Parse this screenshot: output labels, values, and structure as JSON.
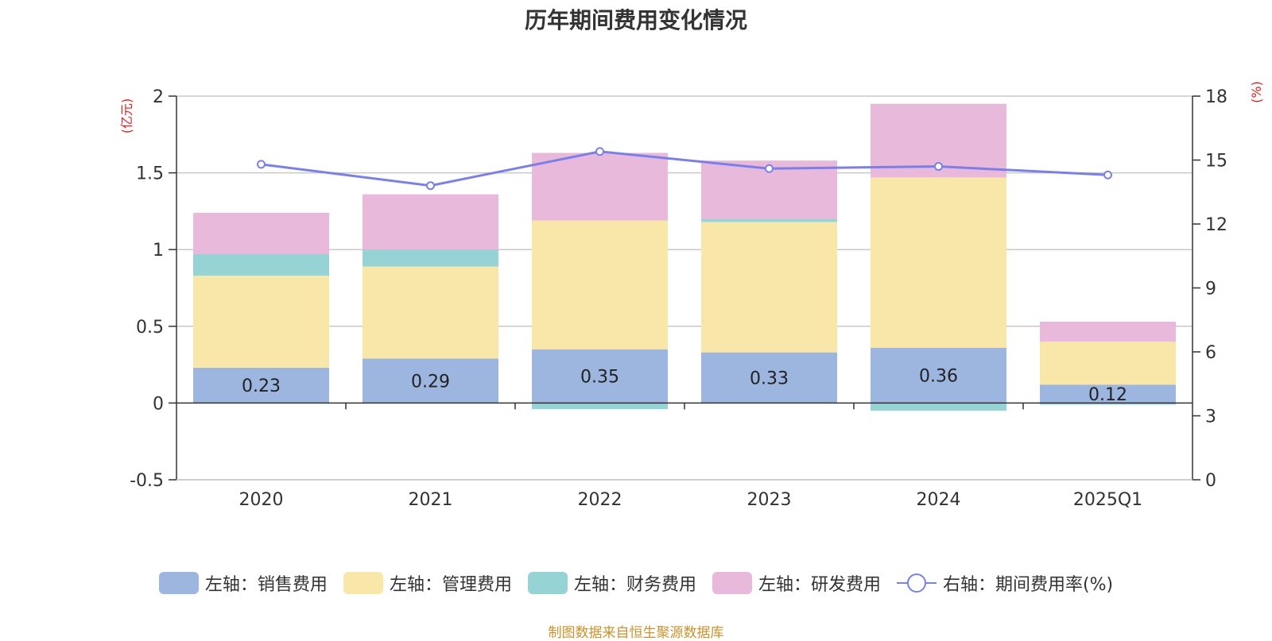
{
  "chart_data": {
    "type": "bar",
    "title": "历年期间费用变化情况",
    "categories": [
      "2020",
      "2021",
      "2022",
      "2023",
      "2024",
      "2025Q1"
    ],
    "ylabel_left": "(亿元)",
    "ylabel_right": "(%)",
    "ylim_left": [
      -0.5,
      2
    ],
    "ylim_right": [
      0,
      18
    ],
    "yticks_left": [
      "-0.5",
      "0",
      "0.5",
      "1",
      "1.5",
      "2"
    ],
    "yticks_right": [
      "0",
      "3",
      "6",
      "9",
      "12",
      "15",
      "18"
    ],
    "stacked": true,
    "grid": true,
    "legend_position": "bottom",
    "series": [
      {
        "name": "左轴：销售费用",
        "type": "bar",
        "axis": "left",
        "color": "#9cb6e0",
        "values": [
          0.23,
          0.29,
          0.35,
          0.33,
          0.36,
          0.12
        ],
        "labels": [
          "0.23",
          "0.29",
          "0.35",
          "0.33",
          "0.36",
          "0.12"
        ]
      },
      {
        "name": "左轴：管理费用",
        "type": "bar",
        "axis": "left",
        "color": "#f8e7a8",
        "values": [
          0.6,
          0.6,
          0.84,
          0.85,
          1.11,
          0.28
        ]
      },
      {
        "name": "左轴：财务费用",
        "type": "bar",
        "axis": "left",
        "color": "#96d3d4",
        "values": [
          0.14,
          0.11,
          -0.04,
          0.02,
          -0.05,
          -0.01
        ]
      },
      {
        "name": "左轴：研发费用",
        "type": "bar",
        "axis": "left",
        "color": "#e8b9da",
        "values": [
          0.27,
          0.36,
          0.44,
          0.38,
          0.48,
          0.13
        ]
      },
      {
        "name": "右轴：期间费用率(%)",
        "type": "line",
        "axis": "right",
        "color": "#7b7fe8",
        "values": [
          14.8,
          13.8,
          15.4,
          14.6,
          14.7,
          14.3
        ]
      }
    ]
  },
  "source": "制图数据来自恒生聚源数据库"
}
